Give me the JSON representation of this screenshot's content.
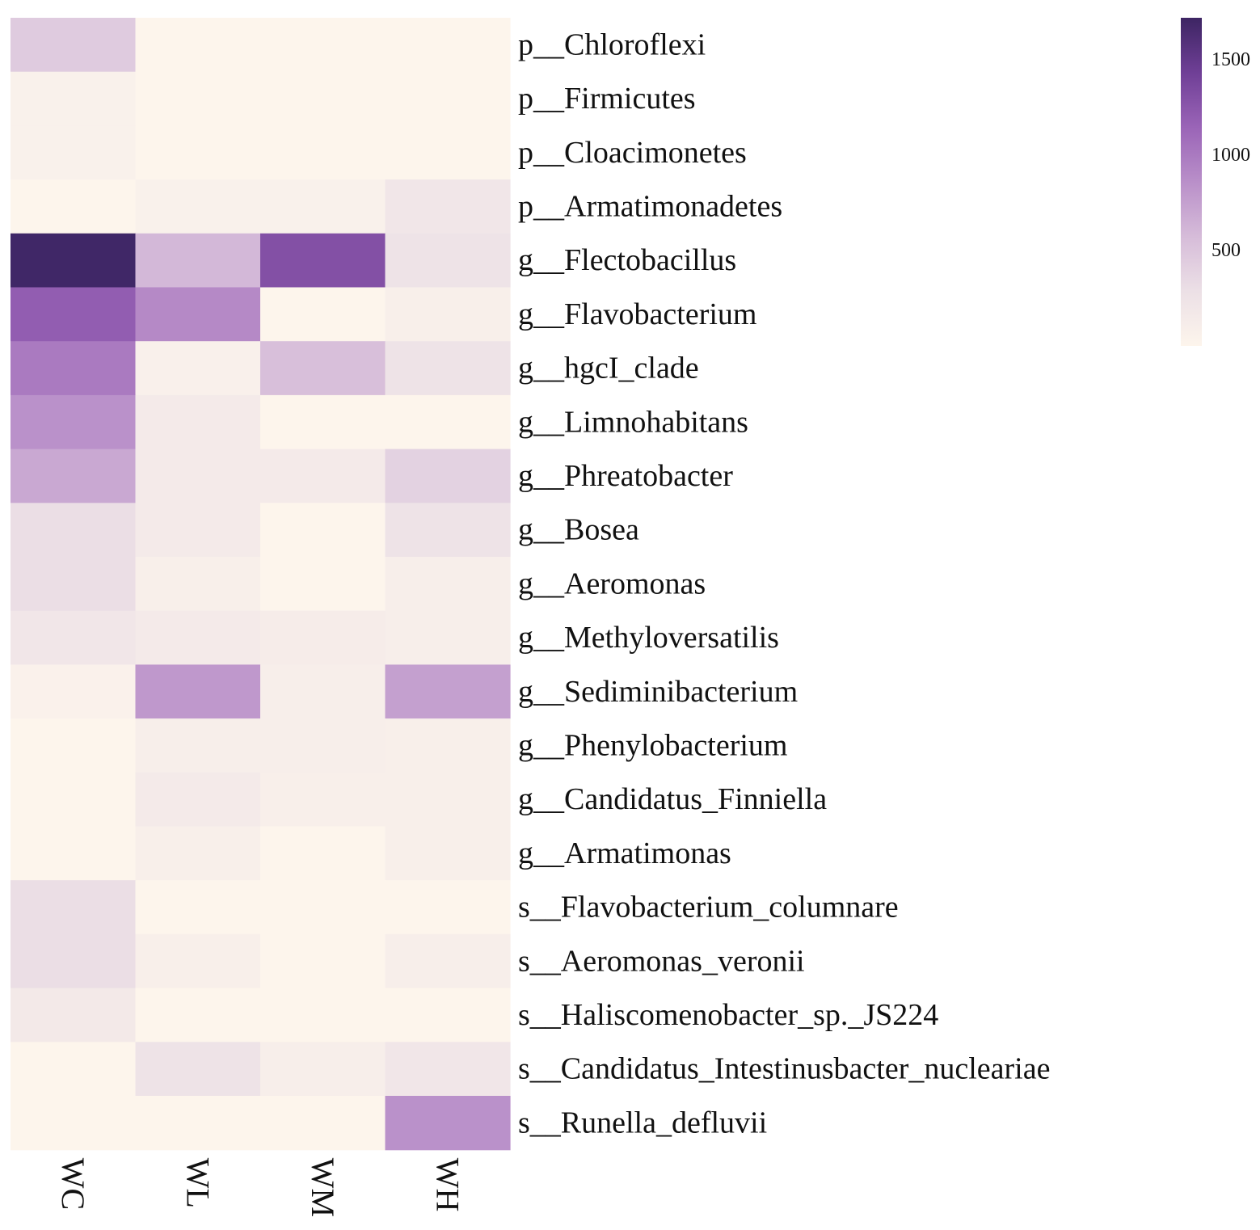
{
  "chart_data": {
    "type": "heatmap",
    "title": "",
    "columns": [
      "WC",
      "WL",
      "WM",
      "WH"
    ],
    "rows": [
      "p__Chloroflexi",
      "p__Firmicutes",
      "p__Cloacimonetes",
      "p__Armatimonadetes",
      "g__Flectobacillus",
      "g__Flavobacterium",
      "g__hgcI_clade",
      "g__Limnohabitans",
      "g__Phreatobacter",
      "g__Bosea",
      "g__Aeromonas",
      "g__Methyloversatilis",
      "g__Sediminibacterium",
      "g__Phenylobacterium",
      "g__Candidatus_Finniella",
      "g__Armatimonas",
      "s__Flavobacterium_columnare",
      "s__Aeromonas_veronii",
      "s__Haliscomenobacter_sp._JS224",
      "s__Candidatus_Intestinusbacter_nucleariae",
      "s__Runella_defluvii"
    ],
    "values": [
      [
        450,
        0,
        0,
        0
      ],
      [
        60,
        0,
        0,
        0
      ],
      [
        60,
        0,
        0,
        0
      ],
      [
        0,
        60,
        60,
        200
      ],
      [
        1700,
        600,
        1300,
        250
      ],
      [
        1200,
        900,
        0,
        80
      ],
      [
        1000,
        70,
        550,
        250
      ],
      [
        850,
        150,
        0,
        0
      ],
      [
        700,
        150,
        150,
        400
      ],
      [
        300,
        150,
        0,
        250
      ],
      [
        300,
        80,
        0,
        100
      ],
      [
        200,
        150,
        120,
        100
      ],
      [
        50,
        800,
        100,
        750
      ],
      [
        0,
        100,
        100,
        80
      ],
      [
        0,
        150,
        80,
        80
      ],
      [
        0,
        80,
        0,
        80
      ],
      [
        300,
        0,
        0,
        0
      ],
      [
        300,
        80,
        0,
        100
      ],
      [
        170,
        0,
        0,
        0
      ],
      [
        0,
        250,
        100,
        200
      ],
      [
        0,
        0,
        0,
        850
      ]
    ],
    "colorbar": {
      "min": 0,
      "max": 1720,
      "ticks": [
        500,
        1000,
        1500
      ],
      "colors": [
        "#fdf5ec",
        "#ece0e6",
        "#d6bcd9",
        "#b98fc9",
        "#9a64b7",
        "#6f3f96",
        "#3d2563"
      ]
    }
  }
}
